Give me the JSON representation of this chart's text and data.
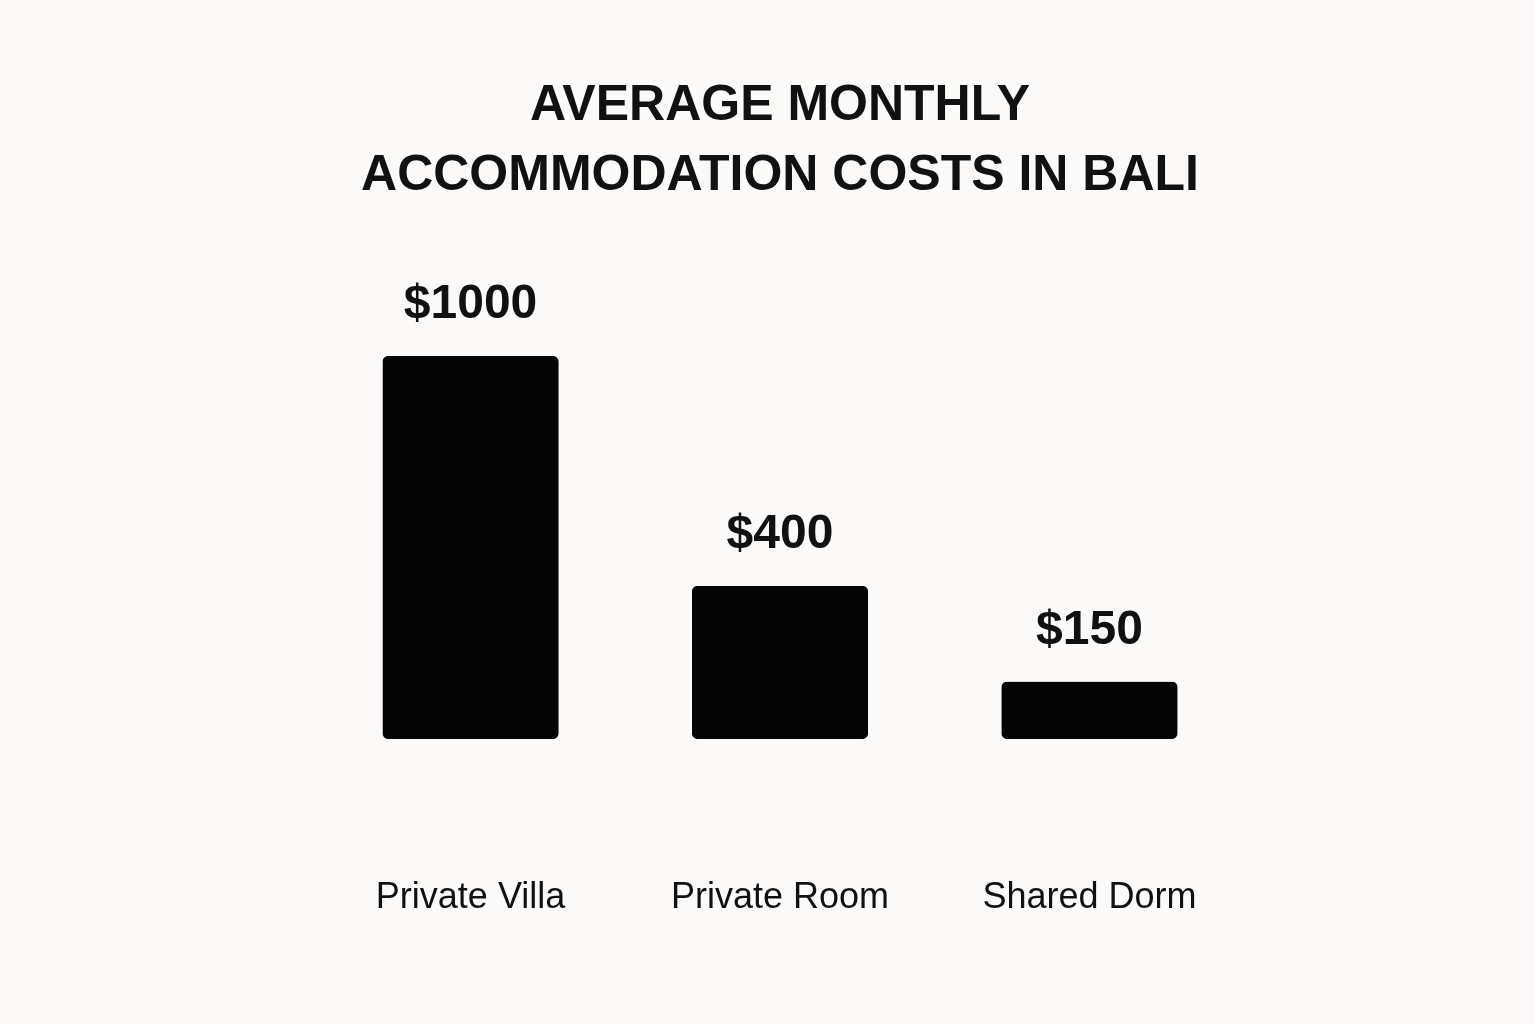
{
  "chart_data": {
    "type": "bar",
    "title": "AVERAGE MONTHLY ACCOMMODATION COSTS IN BALI",
    "categories": [
      "Private Villa",
      "Private Room",
      "Shared Dorm"
    ],
    "values": [
      1000,
      400,
      150
    ],
    "value_labels": [
      "$1000",
      "$400",
      "$150"
    ],
    "color": "#050505",
    "tick_labels": "x"
  }
}
